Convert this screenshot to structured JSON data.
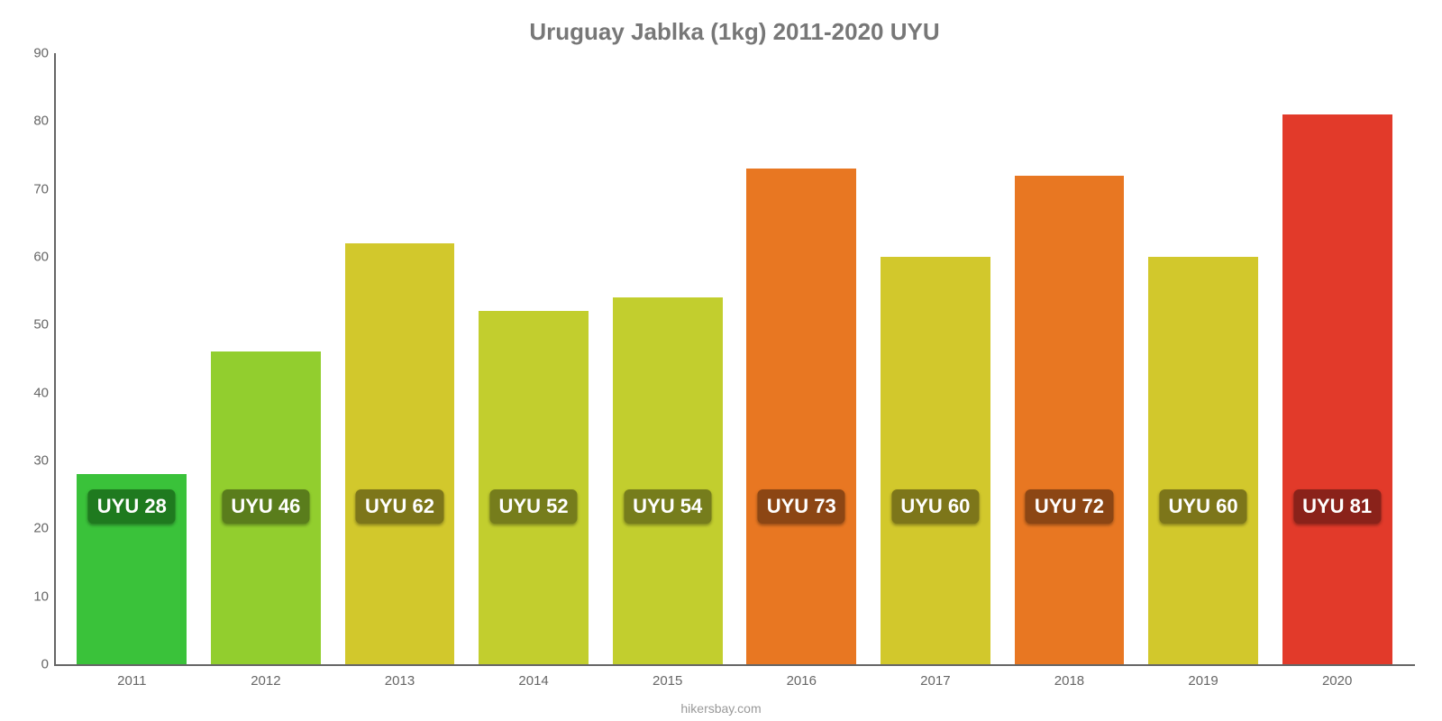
{
  "chart": {
    "type": "bar",
    "title": "Uruguay Jablka (1kg) 2011-2020 UYU",
    "title_fontsize": 26,
    "title_color": "#777777",
    "source": "hikersbay.com",
    "source_fontsize": 14,
    "source_color": "#999999",
    "background_color": "#ffffff",
    "axis_color": "#666666",
    "tick_fontsize": 15,
    "tick_color": "#666666",
    "xlabel_fontsize": 15,
    "datalabel_fontsize": 22,
    "ylim": [
      0,
      90
    ],
    "ytick_step": 10,
    "yticks": [
      0,
      10,
      20,
      30,
      40,
      50,
      60,
      70,
      80,
      90
    ],
    "categories": [
      "2011",
      "2012",
      "2013",
      "2014",
      "2015",
      "2016",
      "2017",
      "2018",
      "2019",
      "2020"
    ],
    "values": [
      28,
      46,
      62,
      52,
      54,
      73,
      60,
      72,
      60,
      81
    ],
    "data_labels": [
      "UYU 28",
      "UYU 46",
      "UYU 62",
      "UYU 52",
      "UYU 54",
      "UYU 73",
      "UYU 60",
      "UYU 72",
      "UYU 60",
      "UYU 81"
    ],
    "bar_colors": [
      "#3ac23a",
      "#92ce2e",
      "#d2c82c",
      "#c2ce2e",
      "#c2ce2e",
      "#e87722",
      "#d2c82c",
      "#e87722",
      "#d2c82c",
      "#e23a2a"
    ],
    "label_bg_colors": [
      "#1f7a1f",
      "#5a7d1c",
      "#7d761a",
      "#767d1c",
      "#767d1c",
      "#8c4614",
      "#7d761a",
      "#8c4614",
      "#7d761a",
      "#8a221a"
    ],
    "bar_width_ratio": 0.82,
    "datalabel_y_offset_pct": 23
  }
}
